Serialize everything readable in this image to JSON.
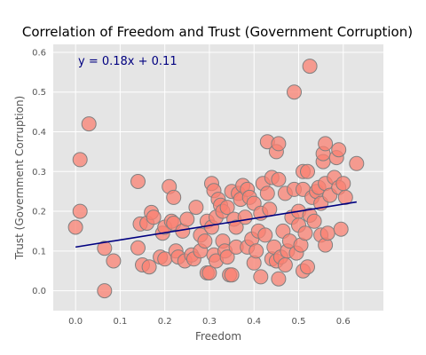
{
  "chart_data": {
    "type": "scatter",
    "title": "Correlation of Freedom and Trust (Government Corruption)",
    "xlabel": "Freedom",
    "ylabel": "Trust (Government Corruption)",
    "xlim": [
      -0.05,
      0.69
    ],
    "ylim": [
      -0.05,
      0.62
    ],
    "xticks": [
      0.0,
      0.1,
      0.2,
      0.3,
      0.4,
      0.5,
      0.6
    ],
    "xtick_labels": [
      "0.0",
      "0.1",
      "0.2",
      "0.3",
      "0.4",
      "0.5",
      "0.6"
    ],
    "yticks": [
      0.0,
      0.1,
      0.2,
      0.3,
      0.4,
      0.5,
      0.6
    ],
    "ytick_labels": [
      "0.0",
      "0.1",
      "0.2",
      "0.3",
      "0.4",
      "0.5",
      "0.6"
    ],
    "grid": true,
    "background_color": "#e5e5e5",
    "grid_color": "#ffffff",
    "marker_color": "#fa8072",
    "marker_edge_color": "#808080",
    "line_color": "#000080",
    "annotation": "y = 0.18x + 0.11",
    "annotation_position": "top-left",
    "fit_line": {
      "slope": 0.18,
      "intercept": 0.11,
      "x_range": [
        0.0,
        0.63
      ]
    },
    "points": [
      [
        0.0,
        0.16
      ],
      [
        0.01,
        0.2
      ],
      [
        0.01,
        0.33
      ],
      [
        0.03,
        0.42
      ],
      [
        0.065,
        0.107
      ],
      [
        0.065,
        0.0
      ],
      [
        0.085,
        0.075
      ],
      [
        0.14,
        0.275
      ],
      [
        0.14,
        0.108
      ],
      [
        0.145,
        0.168
      ],
      [
        0.15,
        0.065
      ],
      [
        0.16,
        0.17
      ],
      [
        0.165,
        0.06
      ],
      [
        0.17,
        0.197
      ],
      [
        0.175,
        0.185
      ],
      [
        0.19,
        0.085
      ],
      [
        0.195,
        0.145
      ],
      [
        0.2,
        0.08
      ],
      [
        0.2,
        0.16
      ],
      [
        0.21,
        0.262
      ],
      [
        0.215,
        0.175
      ],
      [
        0.22,
        0.235
      ],
      [
        0.22,
        0.17
      ],
      [
        0.225,
        0.1
      ],
      [
        0.23,
        0.085
      ],
      [
        0.24,
        0.15
      ],
      [
        0.245,
        0.075
      ],
      [
        0.25,
        0.18
      ],
      [
        0.26,
        0.09
      ],
      [
        0.265,
        0.08
      ],
      [
        0.27,
        0.21
      ],
      [
        0.28,
        0.1
      ],
      [
        0.28,
        0.14
      ],
      [
        0.29,
        0.125
      ],
      [
        0.295,
        0.045
      ],
      [
        0.295,
        0.175
      ],
      [
        0.3,
        0.045
      ],
      [
        0.305,
        0.27
      ],
      [
        0.305,
        0.16
      ],
      [
        0.31,
        0.252
      ],
      [
        0.31,
        0.09
      ],
      [
        0.315,
        0.075
      ],
      [
        0.315,
        0.185
      ],
      [
        0.32,
        0.23
      ],
      [
        0.325,
        0.215
      ],
      [
        0.33,
        0.2
      ],
      [
        0.33,
        0.125
      ],
      [
        0.335,
        0.1
      ],
      [
        0.34,
        0.21
      ],
      [
        0.34,
        0.085
      ],
      [
        0.345,
        0.04
      ],
      [
        0.35,
        0.25
      ],
      [
        0.35,
        0.04
      ],
      [
        0.355,
        0.18
      ],
      [
        0.36,
        0.16
      ],
      [
        0.36,
        0.11
      ],
      [
        0.365,
        0.245
      ],
      [
        0.37,
        0.23
      ],
      [
        0.375,
        0.265
      ],
      [
        0.38,
        0.185
      ],
      [
        0.385,
        0.255
      ],
      [
        0.385,
        0.11
      ],
      [
        0.39,
        0.235
      ],
      [
        0.395,
        0.13
      ],
      [
        0.4,
        0.22
      ],
      [
        0.4,
        0.07
      ],
      [
        0.405,
        0.1
      ],
      [
        0.41,
        0.15
      ],
      [
        0.415,
        0.035
      ],
      [
        0.415,
        0.195
      ],
      [
        0.42,
        0.27
      ],
      [
        0.425,
        0.14
      ],
      [
        0.43,
        0.375
      ],
      [
        0.43,
        0.245
      ],
      [
        0.435,
        0.205
      ],
      [
        0.44,
        0.285
      ],
      [
        0.44,
        0.08
      ],
      [
        0.445,
        0.11
      ],
      [
        0.45,
        0.35
      ],
      [
        0.45,
        0.075
      ],
      [
        0.455,
        0.37
      ],
      [
        0.455,
        0.28
      ],
      [
        0.455,
        0.03
      ],
      [
        0.46,
        0.085
      ],
      [
        0.465,
        0.15
      ],
      [
        0.47,
        0.065
      ],
      [
        0.47,
        0.245
      ],
      [
        0.475,
        0.1
      ],
      [
        0.48,
        0.125
      ],
      [
        0.485,
        0.185
      ],
      [
        0.49,
        0.5
      ],
      [
        0.49,
        0.255
      ],
      [
        0.495,
        0.095
      ],
      [
        0.5,
        0.2
      ],
      [
        0.5,
        0.165
      ],
      [
        0.505,
        0.115
      ],
      [
        0.51,
        0.3
      ],
      [
        0.51,
        0.255
      ],
      [
        0.51,
        0.05
      ],
      [
        0.515,
        0.145
      ],
      [
        0.52,
        0.3
      ],
      [
        0.52,
        0.06
      ],
      [
        0.525,
        0.565
      ],
      [
        0.525,
        0.19
      ],
      [
        0.53,
        0.235
      ],
      [
        0.535,
        0.175
      ],
      [
        0.54,
        0.25
      ],
      [
        0.545,
        0.26
      ],
      [
        0.55,
        0.14
      ],
      [
        0.55,
        0.22
      ],
      [
        0.555,
        0.325
      ],
      [
        0.555,
        0.345
      ],
      [
        0.56,
        0.37
      ],
      [
        0.56,
        0.27
      ],
      [
        0.56,
        0.115
      ],
      [
        0.565,
        0.145
      ],
      [
        0.57,
        0.24
      ],
      [
        0.58,
        0.285
      ],
      [
        0.585,
        0.335
      ],
      [
        0.59,
        0.355
      ],
      [
        0.59,
        0.26
      ],
      [
        0.595,
        0.155
      ],
      [
        0.6,
        0.27
      ],
      [
        0.605,
        0.235
      ],
      [
        0.63,
        0.32
      ]
    ]
  }
}
